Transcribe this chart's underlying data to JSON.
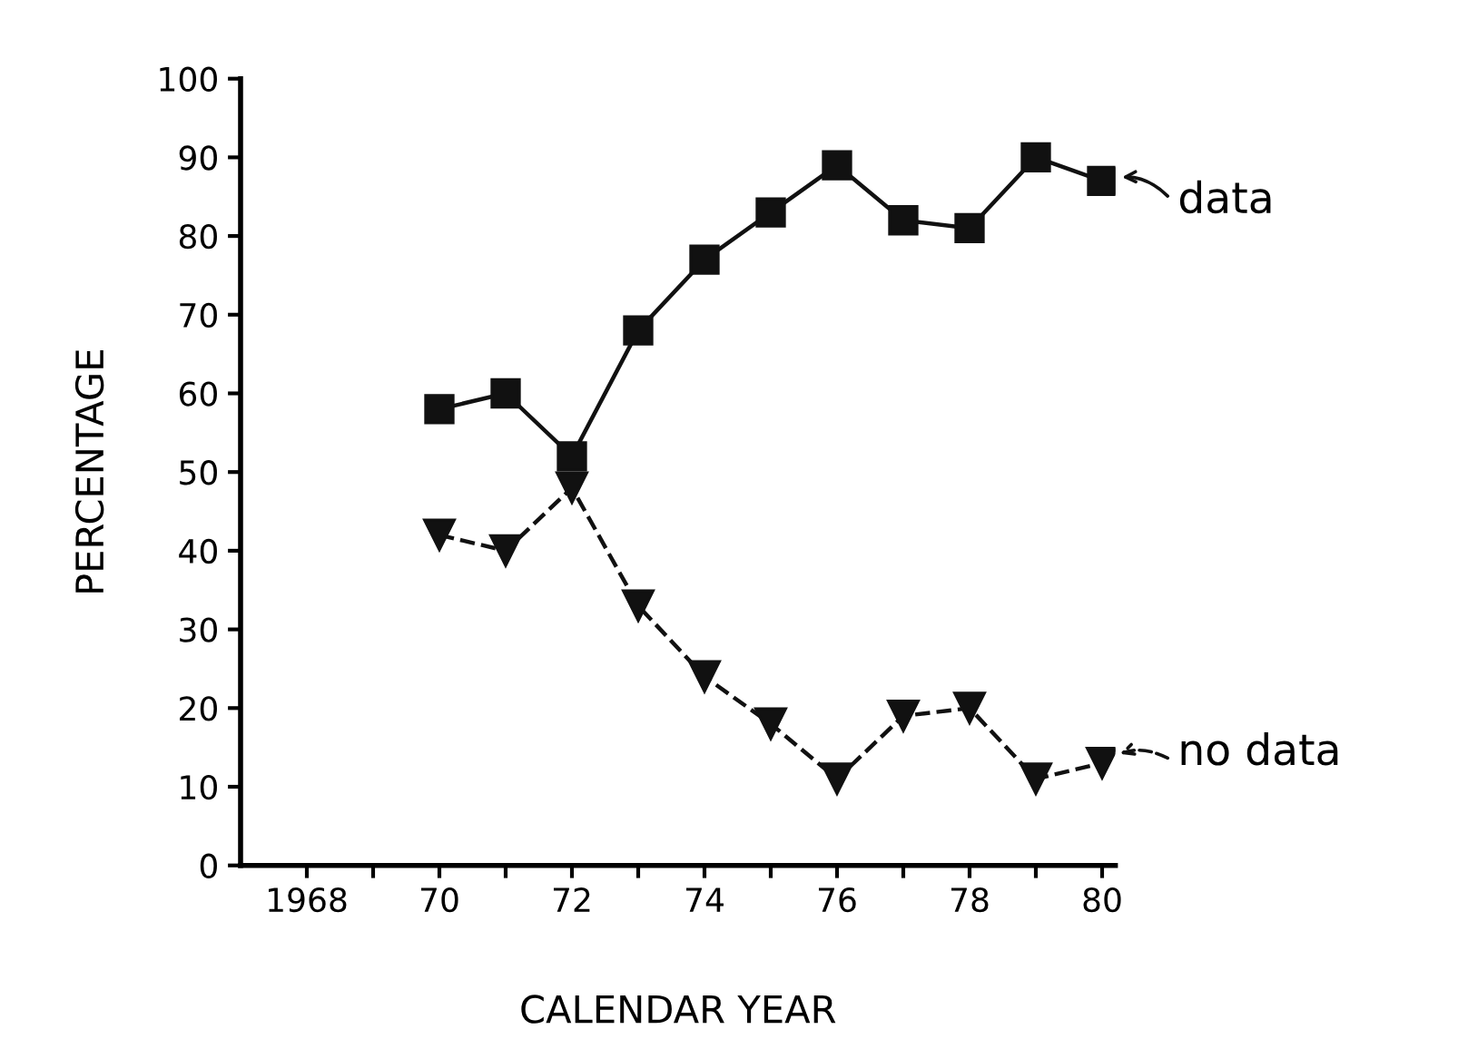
{
  "chart_data": {
    "type": "line",
    "xlabel": "CALENDAR YEAR",
    "ylabel": "PERCENTAGE",
    "x": [
      1970,
      1971,
      1972,
      1973,
      1974,
      1975,
      1976,
      1977,
      1978,
      1979,
      1980
    ],
    "series": [
      {
        "name": "data",
        "color": "#111111",
        "marker": "square",
        "line_style": "solid",
        "values": [
          58,
          60,
          52,
          68,
          77,
          83,
          89,
          82,
          81,
          90,
          87
        ]
      },
      {
        "name": "no data",
        "color": "#111111",
        "marker": "triangle",
        "line_style": "dashed",
        "values": [
          42,
          40,
          48,
          33,
          24,
          18,
          11,
          19,
          20,
          11,
          13
        ]
      }
    ],
    "xlim": [
      1967,
      1980.2
    ],
    "xticks": [
      1968,
      {
        "value": 1969,
        "label": null
      },
      {
        "value": 1970,
        "label": "70"
      },
      {
        "value": 1971,
        "label": null
      },
      {
        "value": 1972,
        "label": "72"
      },
      {
        "value": 1973,
        "label": null
      },
      {
        "value": 1974,
        "label": "74"
      },
      {
        "value": 1975,
        "label": null
      },
      {
        "value": 1976,
        "label": "76"
      },
      {
        "value": 1977,
        "label": null
      },
      {
        "value": 1978,
        "label": "78"
      },
      {
        "value": 1979,
        "label": null
      },
      {
        "value": 1980,
        "label": "80"
      }
    ],
    "ylim": [
      0,
      100
    ],
    "yticks": [
      0,
      10,
      20,
      30,
      40,
      50,
      60,
      70,
      80,
      90,
      100
    ],
    "grid": false,
    "legend": "right"
  }
}
